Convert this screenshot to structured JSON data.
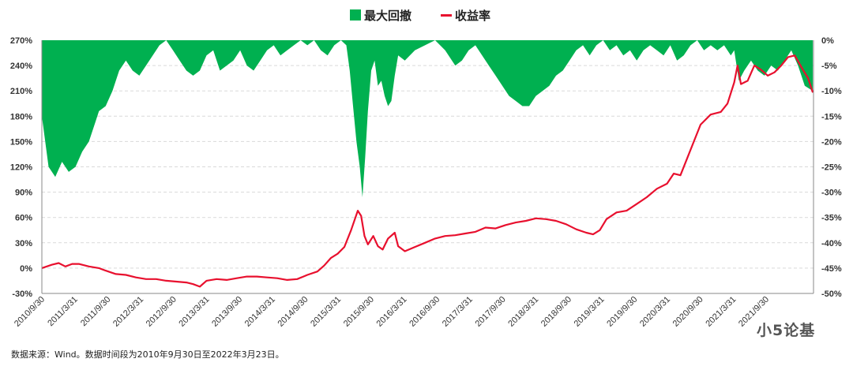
{
  "chart_data": {
    "type": "area+line",
    "legend": [
      {
        "name": "最大回撤",
        "color": "#00b050",
        "kind": "area"
      },
      {
        "name": "收益率",
        "color": "#e8102e",
        "kind": "line"
      }
    ],
    "left_axis": {
      "ticks": [
        "270%",
        "240%",
        "210%",
        "180%",
        "150%",
        "120%",
        "90%",
        "60%",
        "30%",
        "0%",
        "-30%"
      ],
      "range": [
        -30,
        270
      ]
    },
    "right_axis": {
      "ticks": [
        "0%",
        "-5%",
        "-10%",
        "-15%",
        "-20%",
        "-25%",
        "-30%",
        "-35%",
        "-40%",
        "-45%",
        "-50%"
      ],
      "range": [
        -50,
        0
      ]
    },
    "x_ticks": [
      "2010/9/30",
      "2011/3/31",
      "2011/9/30",
      "2012/3/31",
      "2012/9/30",
      "2013/3/31",
      "2013/9/30",
      "2014/3/31",
      "2014/9/30",
      "2015/3/31",
      "2015/9/30",
      "2016/3/31",
      "2016/9/30",
      "2017/3/31",
      "2017/9/30",
      "2018/3/31",
      "2018/9/30",
      "2019/3/31",
      "2019/9/30",
      "2020/3/31",
      "2020/9/30",
      "2021/3/31",
      "2021/9/30"
    ],
    "grid": true,
    "return_series_name": "收益率",
    "return_points": [
      [
        2010.75,
        0
      ],
      [
        2010.9,
        4
      ],
      [
        2011.0,
        6
      ],
      [
        2011.1,
        2
      ],
      [
        2011.2,
        5
      ],
      [
        2011.3,
        5
      ],
      [
        2011.45,
        2
      ],
      [
        2011.6,
        0
      ],
      [
        2011.7,
        -3
      ],
      [
        2011.85,
        -7
      ],
      [
        2012.0,
        -8
      ],
      [
        2012.15,
        -11
      ],
      [
        2012.3,
        -13
      ],
      [
        2012.45,
        -13
      ],
      [
        2012.6,
        -15
      ],
      [
        2012.75,
        -16
      ],
      [
        2012.9,
        -17
      ],
      [
        2013.0,
        -19
      ],
      [
        2013.1,
        -22
      ],
      [
        2013.2,
        -15
      ],
      [
        2013.35,
        -13
      ],
      [
        2013.5,
        -14
      ],
      [
        2013.65,
        -12
      ],
      [
        2013.8,
        -10
      ],
      [
        2013.95,
        -10
      ],
      [
        2014.1,
        -11
      ],
      [
        2014.25,
        -12
      ],
      [
        2014.4,
        -14
      ],
      [
        2014.55,
        -13
      ],
      [
        2014.7,
        -8
      ],
      [
        2014.85,
        -4
      ],
      [
        2014.95,
        3
      ],
      [
        2015.05,
        12
      ],
      [
        2015.15,
        17
      ],
      [
        2015.25,
        25
      ],
      [
        2015.35,
        45
      ],
      [
        2015.45,
        68
      ],
      [
        2015.5,
        62
      ],
      [
        2015.55,
        38
      ],
      [
        2015.6,
        28
      ],
      [
        2015.68,
        38
      ],
      [
        2015.75,
        26
      ],
      [
        2015.82,
        22
      ],
      [
        2015.9,
        35
      ],
      [
        2016.0,
        42
      ],
      [
        2016.05,
        26
      ],
      [
        2016.15,
        20
      ],
      [
        2016.3,
        25
      ],
      [
        2016.45,
        30
      ],
      [
        2016.6,
        35
      ],
      [
        2016.75,
        38
      ],
      [
        2016.9,
        39
      ],
      [
        2017.05,
        41
      ],
      [
        2017.2,
        43
      ],
      [
        2017.35,
        48
      ],
      [
        2017.5,
        47
      ],
      [
        2017.65,
        51
      ],
      [
        2017.8,
        54
      ],
      [
        2017.95,
        56
      ],
      [
        2018.1,
        59
      ],
      [
        2018.25,
        58
      ],
      [
        2018.4,
        56
      ],
      [
        2018.55,
        52
      ],
      [
        2018.7,
        46
      ],
      [
        2018.85,
        42
      ],
      [
        2018.95,
        40
      ],
      [
        2019.05,
        45
      ],
      [
        2019.15,
        58
      ],
      [
        2019.3,
        66
      ],
      [
        2019.45,
        68
      ],
      [
        2019.6,
        76
      ],
      [
        2019.75,
        84
      ],
      [
        2019.9,
        94
      ],
      [
        2020.05,
        100
      ],
      [
        2020.15,
        112
      ],
      [
        2020.25,
        110
      ],
      [
        2020.35,
        130
      ],
      [
        2020.45,
        150
      ],
      [
        2020.55,
        170
      ],
      [
        2020.7,
        182
      ],
      [
        2020.85,
        185
      ],
      [
        2020.95,
        195
      ],
      [
        2021.05,
        220
      ],
      [
        2021.1,
        240
      ],
      [
        2021.15,
        218
      ],
      [
        2021.25,
        222
      ],
      [
        2021.35,
        240
      ],
      [
        2021.45,
        235
      ],
      [
        2021.55,
        228
      ],
      [
        2021.65,
        232
      ],
      [
        2021.75,
        240
      ],
      [
        2021.85,
        250
      ],
      [
        2021.95,
        252
      ],
      [
        2022.05,
        238
      ],
      [
        2022.15,
        225
      ],
      [
        2022.22,
        208
      ]
    ],
    "drawdown_series_name": "最大回撤",
    "drawdown_points": [
      [
        2010.75,
        -15
      ],
      [
        2010.85,
        -25
      ],
      [
        2010.95,
        -27
      ],
      [
        2011.05,
        -24
      ],
      [
        2011.15,
        -26
      ],
      [
        2011.25,
        -25
      ],
      [
        2011.35,
        -22
      ],
      [
        2011.45,
        -20
      ],
      [
        2011.55,
        -16
      ],
      [
        2011.6,
        -14
      ],
      [
        2011.7,
        -13
      ],
      [
        2011.8,
        -10
      ],
      [
        2011.9,
        -6
      ],
      [
        2012.0,
        -4
      ],
      [
        2012.1,
        -6
      ],
      [
        2012.2,
        -7
      ],
      [
        2012.3,
        -5
      ],
      [
        2012.4,
        -3
      ],
      [
        2012.5,
        -1
      ],
      [
        2012.6,
        0
      ],
      [
        2012.7,
        -2
      ],
      [
        2012.8,
        -4
      ],
      [
        2012.9,
        -6
      ],
      [
        2013.0,
        -7
      ],
      [
        2013.1,
        -6
      ],
      [
        2013.2,
        -3
      ],
      [
        2013.3,
        -2
      ],
      [
        2013.4,
        -6
      ],
      [
        2013.5,
        -5
      ],
      [
        2013.6,
        -4
      ],
      [
        2013.7,
        -2
      ],
      [
        2013.8,
        -5
      ],
      [
        2013.9,
        -6
      ],
      [
        2014.0,
        -4
      ],
      [
        2014.1,
        -2
      ],
      [
        2014.2,
        -1
      ],
      [
        2014.3,
        -3
      ],
      [
        2014.4,
        -2
      ],
      [
        2014.5,
        -1
      ],
      [
        2014.6,
        0
      ],
      [
        2014.7,
        -1
      ],
      [
        2014.8,
        0
      ],
      [
        2014.9,
        -2
      ],
      [
        2015.0,
        -3
      ],
      [
        2015.1,
        -1
      ],
      [
        2015.2,
        0
      ],
      [
        2015.28,
        -1
      ],
      [
        2015.33,
        -6
      ],
      [
        2015.38,
        -13
      ],
      [
        2015.43,
        -20
      ],
      [
        2015.48,
        -25
      ],
      [
        2015.52,
        -31
      ],
      [
        2015.56,
        -23
      ],
      [
        2015.6,
        -14
      ],
      [
        2015.65,
        -6
      ],
      [
        2015.7,
        -4
      ],
      [
        2015.75,
        -9
      ],
      [
        2015.8,
        -8
      ],
      [
        2015.85,
        -11
      ],
      [
        2015.9,
        -13
      ],
      [
        2015.95,
        -12
      ],
      [
        2016.0,
        -7
      ],
      [
        2016.05,
        -3
      ],
      [
        2016.15,
        -4
      ],
      [
        2016.3,
        -2
      ],
      [
        2016.45,
        -1
      ],
      [
        2016.6,
        0
      ],
      [
        2016.75,
        -2
      ],
      [
        2016.9,
        -5
      ],
      [
        2017.0,
        -4
      ],
      [
        2017.1,
        -2
      ],
      [
        2017.2,
        -1
      ],
      [
        2017.3,
        -3
      ],
      [
        2017.4,
        -5
      ],
      [
        2017.5,
        -7
      ],
      [
        2017.6,
        -9
      ],
      [
        2017.7,
        -11
      ],
      [
        2017.8,
        -12
      ],
      [
        2017.9,
        -13
      ],
      [
        2018.0,
        -13
      ],
      [
        2018.1,
        -11
      ],
      [
        2018.2,
        -10
      ],
      [
        2018.3,
        -9
      ],
      [
        2018.4,
        -7
      ],
      [
        2018.5,
        -6
      ],
      [
        2018.6,
        -4
      ],
      [
        2018.7,
        -2
      ],
      [
        2018.8,
        -1
      ],
      [
        2018.9,
        -3
      ],
      [
        2019.0,
        -1
      ],
      [
        2019.1,
        0
      ],
      [
        2019.2,
        -2
      ],
      [
        2019.3,
        -1
      ],
      [
        2019.4,
        -3
      ],
      [
        2019.5,
        -2
      ],
      [
        2019.6,
        -4
      ],
      [
        2019.7,
        -2
      ],
      [
        2019.8,
        -1
      ],
      [
        2019.9,
        -2
      ],
      [
        2020.0,
        -3
      ],
      [
        2020.1,
        -1
      ],
      [
        2020.2,
        -4
      ],
      [
        2020.3,
        -3
      ],
      [
        2020.4,
        -1
      ],
      [
        2020.5,
        0
      ],
      [
        2020.6,
        -2
      ],
      [
        2020.7,
        -1
      ],
      [
        2020.8,
        -2
      ],
      [
        2020.9,
        -1
      ],
      [
        2021.0,
        -3
      ],
      [
        2021.05,
        -2
      ],
      [
        2021.12,
        -8
      ],
      [
        2021.2,
        -6
      ],
      [
        2021.3,
        -4
      ],
      [
        2021.4,
        -6
      ],
      [
        2021.5,
        -7
      ],
      [
        2021.6,
        -5
      ],
      [
        2021.7,
        -6
      ],
      [
        2021.8,
        -4
      ],
      [
        2021.9,
        -2
      ],
      [
        2022.0,
        -5
      ],
      [
        2022.1,
        -9
      ],
      [
        2022.22,
        -10
      ]
    ],
    "x_range": [
      2010.75,
      2022.23
    ]
  },
  "source_note": "数据来源：Wind。数据时间段为2010年9月30日至2022年3月23日。",
  "watermark": "小5论基",
  "colors": {
    "drawdown": "#00b050",
    "return": "#e8102e",
    "grid": "#d9d9d9",
    "axis": "#888888"
  }
}
